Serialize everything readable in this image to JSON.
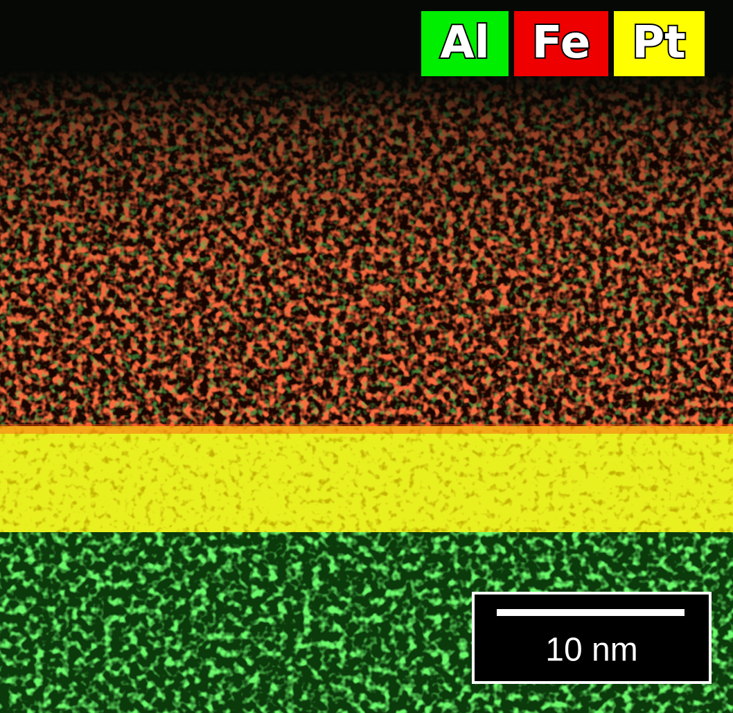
{
  "legend": [
    {
      "label": "Al"
    },
    {
      "label": "Fe"
    },
    {
      "label": "Pt"
    }
  ],
  "scale_bar": {
    "label": "10 nm"
  }
}
